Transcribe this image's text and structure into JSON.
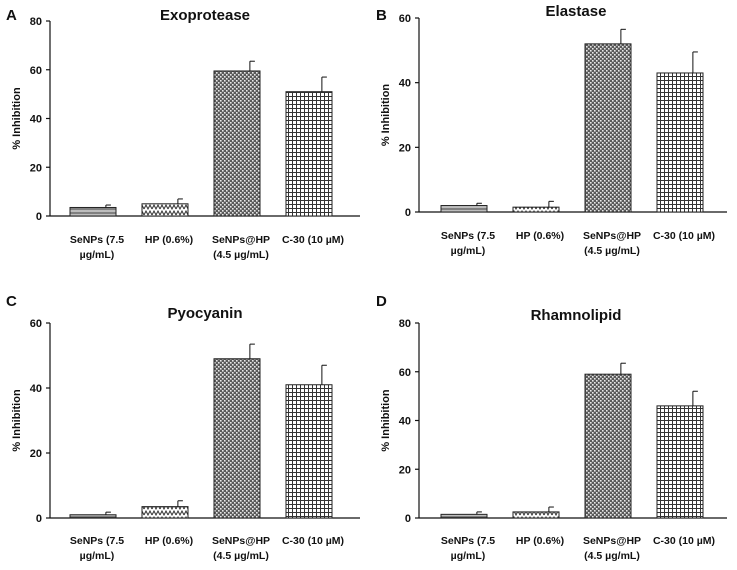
{
  "figure": {
    "colors": {
      "axis": "#111111",
      "bar_stroke": "#222222",
      "bar_fill_light": "#d8d8d8",
      "bar_fill_dark": "#555555",
      "background": "#ffffff"
    }
  },
  "chart_data": [
    {
      "panel": "A",
      "type": "bar",
      "title": "Exoprotease",
      "ylabel": "% Inhibition",
      "xlabel": "",
      "ylim": [
        0,
        80
      ],
      "yticks": [
        0,
        20,
        40,
        60,
        80
      ],
      "categories": [
        [
          "SeNPs (7.5",
          "µg/mL)"
        ],
        [
          "HP (0.6%)"
        ],
        [
          "SeNPs@HP",
          "(4.5 µg/mL)"
        ],
        [
          "C-30 (10 µM)"
        ]
      ],
      "values": [
        3.5,
        5,
        59.5,
        51
      ],
      "errors": [
        1,
        2,
        4,
        6
      ],
      "patterns": [
        "hatch-h",
        "zigzag",
        "dots",
        "grid"
      ]
    },
    {
      "panel": "B",
      "type": "bar",
      "title": "Elastase",
      "ylabel": "% Inhibition",
      "xlabel": "",
      "ylim": [
        0,
        60
      ],
      "yticks": [
        0,
        20,
        40,
        60
      ],
      "categories": [
        [
          "SeNPs (7.5",
          "µg/mL)"
        ],
        [
          "HP (0.6%)"
        ],
        [
          "SeNPs@HP",
          "(4.5 µg/mL)"
        ],
        [
          "C-30 (10 µM)"
        ]
      ],
      "values": [
        2,
        1.5,
        52,
        43
      ],
      "errors": [
        0.7,
        1.8,
        4.5,
        6.5
      ],
      "patterns": [
        "hatch-h",
        "zigzag",
        "dots",
        "grid"
      ]
    },
    {
      "panel": "C",
      "type": "bar",
      "title": "Pyocyanin",
      "ylabel": "% Inhibition",
      "xlabel": "",
      "ylim": [
        0,
        60
      ],
      "yticks": [
        0,
        20,
        40,
        60
      ],
      "categories": [
        [
          "SeNPs (7.5",
          "µg/mL)"
        ],
        [
          "HP (0.6%)"
        ],
        [
          "SeNPs@HP",
          "(4.5 µg/mL)"
        ],
        [
          "C-30 (10 µM)"
        ]
      ],
      "values": [
        1,
        3.5,
        49,
        41
      ],
      "errors": [
        0.8,
        1.8,
        4.5,
        6
      ],
      "patterns": [
        "hatch-h",
        "zigzag",
        "dots",
        "grid"
      ]
    },
    {
      "panel": "D",
      "type": "bar",
      "title": "Rhamnolipid",
      "ylabel": "% Inhibition",
      "xlabel": "",
      "ylim": [
        0,
        80
      ],
      "yticks": [
        0,
        20,
        40,
        60,
        80
      ],
      "categories": [
        [
          "SeNPs (7.5",
          "µg/mL)"
        ],
        [
          "HP (0.6%)"
        ],
        [
          "SeNPs@HP",
          "(4.5 µg/mL)"
        ],
        [
          "C-30 (10 µM)"
        ]
      ],
      "values": [
        1.5,
        2.5,
        59,
        46
      ],
      "errors": [
        1,
        2,
        4.5,
        6
      ],
      "patterns": [
        "hatch-h",
        "zigzag",
        "dots",
        "grid"
      ]
    }
  ]
}
